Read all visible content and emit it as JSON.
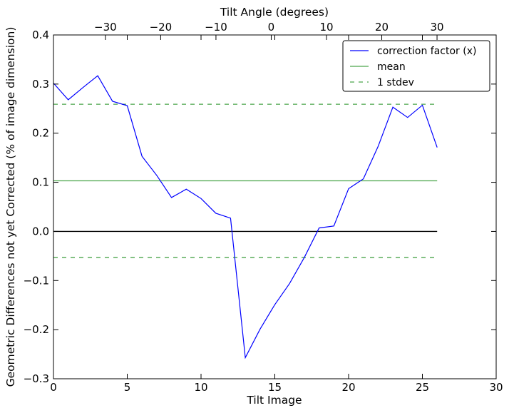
{
  "chart_data": {
    "type": "line",
    "xlabel": "Tilt Image",
    "ylabel": "Geometric Differences not yet Corrected (% of image dimension)",
    "top_xlabel": "Tilt Angle (degrees)",
    "xlim": [
      0,
      30
    ],
    "ylim": [
      -0.3,
      0.4
    ],
    "top_xlim": [
      -39.4,
      40.7
    ],
    "x_ticks": [
      0,
      5,
      10,
      15,
      20,
      25,
      30
    ],
    "y_ticks": [
      -0.3,
      -0.2,
      -0.1,
      0.0,
      0.1,
      0.2,
      0.3,
      0.4
    ],
    "top_ticks": [
      -30,
      -20,
      -10,
      0,
      10,
      20,
      30
    ],
    "x_tick_labels": [
      "0",
      "5",
      "10",
      "15",
      "20",
      "25",
      "30"
    ],
    "y_tick_labels": [
      "−0.3",
      "−0.2",
      "−0.1",
      "0.0",
      "0.1",
      "0.2",
      "0.3",
      "0.4"
    ],
    "top_tick_labels": [
      "−30",
      "−20",
      "−10",
      "0",
      "10",
      "20",
      "30"
    ],
    "grid": false,
    "legend_position": "top-right",
    "series": [
      {
        "name": "correction factor (x)",
        "color": "#0000ff",
        "style": "solid",
        "x": [
          0,
          1,
          2,
          3,
          4,
          5,
          6,
          7,
          8,
          9,
          10,
          11,
          12,
          13,
          14,
          15,
          16,
          17,
          18,
          19,
          20,
          21,
          22,
          23,
          24,
          25,
          26
        ],
        "y": [
          0.302,
          0.268,
          0.293,
          0.317,
          0.265,
          0.256,
          0.153,
          0.114,
          0.069,
          0.086,
          0.067,
          0.037,
          0.027,
          -0.257,
          -0.199,
          -0.149,
          -0.106,
          -0.053,
          0.007,
          0.011,
          0.087,
          0.107,
          0.173,
          0.253,
          0.232,
          0.257,
          0.171
        ]
      },
      {
        "name": "mean",
        "color": "#008000",
        "style": "solid",
        "x": [
          0,
          26
        ],
        "y": [
          0.103,
          0.103
        ]
      },
      {
        "name": "1 stdev",
        "color": "#008000",
        "style": "dashed",
        "x": [
          0,
          26
        ],
        "y": [
          0.259,
          0.259
        ]
      },
      {
        "color": "#008000",
        "style": "dashed",
        "x": [
          0,
          26
        ],
        "y": [
          -0.053,
          -0.053
        ]
      },
      {
        "color": "#000000",
        "style": "solid",
        "x": [
          0,
          26
        ],
        "y": [
          0.0,
          0.0
        ]
      }
    ]
  }
}
